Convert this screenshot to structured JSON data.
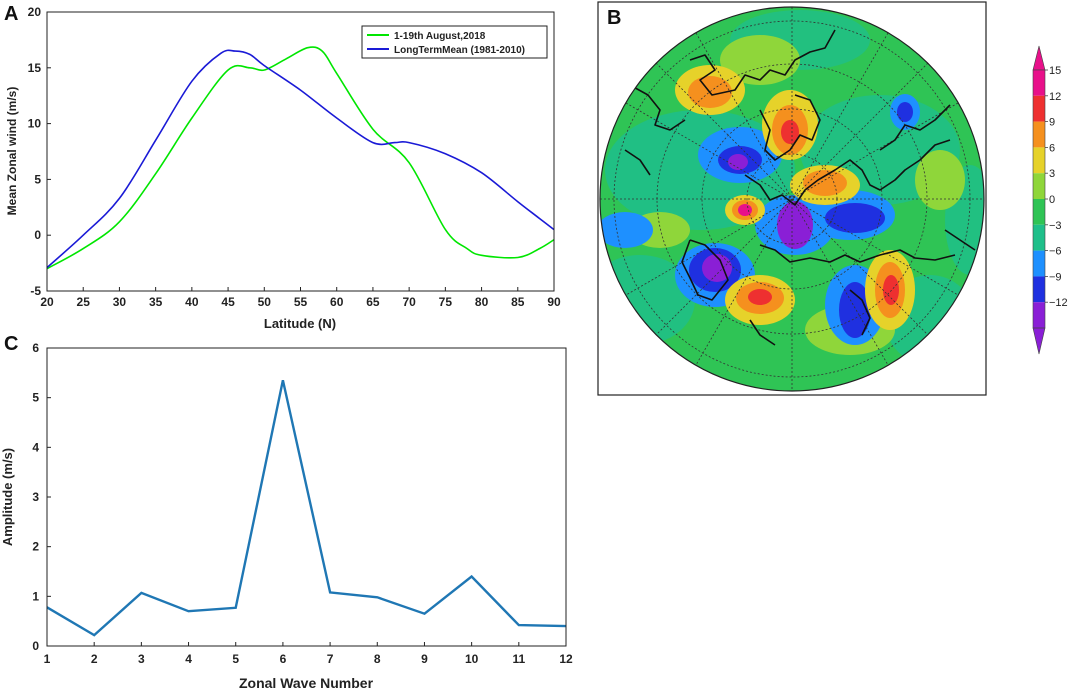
{
  "chart_data": [
    {
      "panel": "A",
      "type": "line",
      "xlabel": "Latitude (N)",
      "ylabel": "Mean Zonal wind (m/s)",
      "xlim": [
        20,
        90
      ],
      "ylim": [
        -5,
        20
      ],
      "xticks": [
        20,
        25,
        30,
        35,
        40,
        45,
        50,
        55,
        60,
        65,
        70,
        75,
        80,
        85,
        90
      ],
      "yticks": [
        -5,
        0,
        5,
        10,
        15,
        20
      ],
      "legend_position": "top-right",
      "series": [
        {
          "name": "1-19th August,2018",
          "color": "#00e600",
          "x": [
            20,
            25,
            30,
            35,
            40,
            45,
            48,
            50,
            53,
            56,
            58,
            60,
            65,
            70,
            75,
            78,
            80,
            85,
            88,
            90
          ],
          "y": [
            -3,
            -1.2,
            1.2,
            5.5,
            10.5,
            14.8,
            15,
            14.8,
            15.8,
            16.8,
            16.5,
            14.5,
            9.5,
            6.5,
            0.5,
            -1.2,
            -1.8,
            -2,
            -1.2,
            -0.4
          ]
        },
        {
          "name": "LongTermMean (1981-2010)",
          "color": "#1a1ad6",
          "x": [
            20,
            25,
            30,
            35,
            40,
            44,
            46,
            48,
            50,
            55,
            60,
            65,
            68,
            70,
            75,
            80,
            85,
            88,
            90
          ],
          "y": [
            -2.9,
            0,
            3.3,
            8.5,
            13.8,
            16.3,
            16.5,
            16.2,
            15.2,
            13,
            10.5,
            8.3,
            8.3,
            8.3,
            7.3,
            5.6,
            3,
            1.5,
            0.5
          ]
        }
      ]
    },
    {
      "panel": "B",
      "type": "heatmap",
      "projection": "north-polar-stereographic",
      "colorbar_ticks": [
        15,
        12,
        9,
        6,
        3,
        0,
        -3,
        -6,
        -9,
        -12
      ]
    },
    {
      "panel": "C",
      "type": "line",
      "xlabel": "Zonal Wave Number",
      "ylabel": "Amplitude (m/s)",
      "xlim": [
        1,
        12
      ],
      "ylim": [
        0,
        6
      ],
      "xticks": [
        1,
        2,
        3,
        4,
        5,
        6,
        7,
        8,
        9,
        10,
        11,
        12
      ],
      "yticks": [
        0,
        1,
        2,
        3,
        4,
        5,
        6
      ],
      "series": [
        {
          "name": "Amplitude",
          "color": "#1f77b4",
          "x": [
            1,
            2,
            3,
            4,
            5,
            6,
            7,
            8,
            9,
            10,
            11,
            12
          ],
          "y": [
            0.78,
            0.22,
            1.07,
            0.7,
            0.77,
            5.35,
            1.08,
            0.98,
            0.65,
            1.4,
            0.42,
            0.4
          ]
        }
      ]
    }
  ]
}
